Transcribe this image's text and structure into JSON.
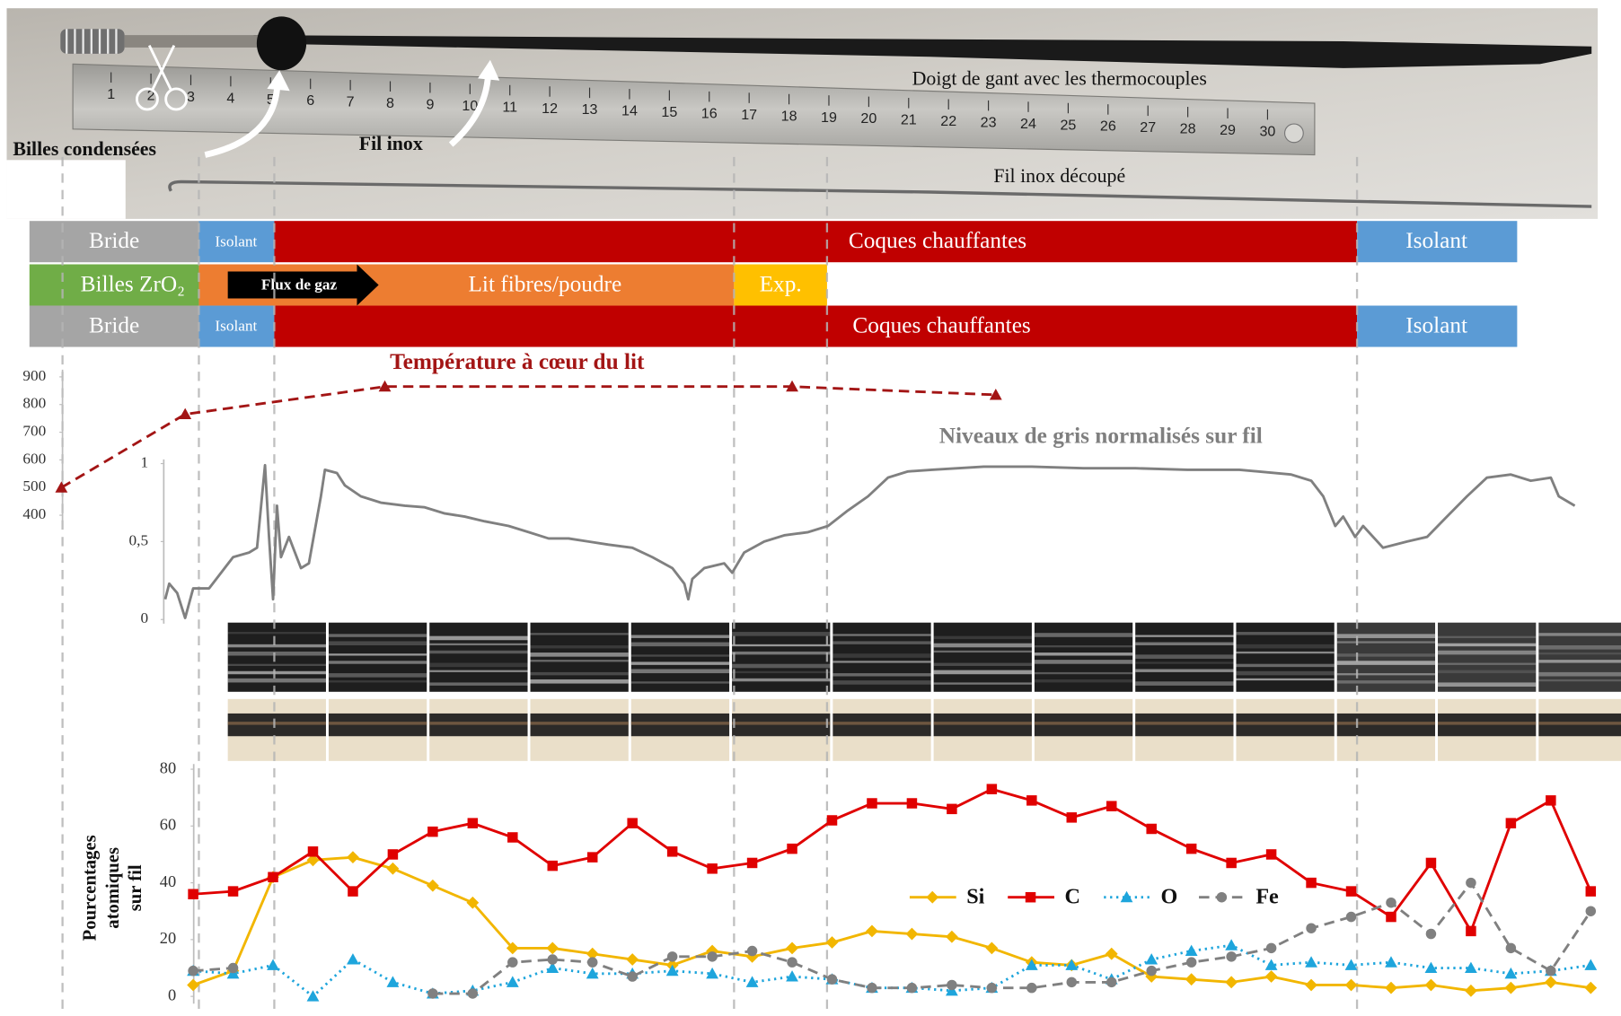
{
  "photo": {
    "labels": [
      "Billes condensées",
      "Fil inox",
      "Doigt de gant avec les thermocouples",
      "Fil inox découpé"
    ],
    "ruler_numbers": [
      1,
      2,
      3,
      4,
      5,
      6,
      7,
      8,
      9,
      10,
      11,
      12,
      13,
      14,
      15,
      16,
      17,
      18,
      19,
      20,
      21,
      22,
      23,
      24,
      25,
      26,
      27,
      28,
      29,
      30
    ]
  },
  "bands": [
    [
      {
        "label": "Bride",
        "color": "#a5a5a5"
      },
      {
        "label": "Isolant",
        "color": "#5b9bd5"
      },
      {
        "label": "Coques chauffantes",
        "color": "#c00000"
      },
      {
        "label": "Isolant",
        "color": "#5b9bd5"
      }
    ],
    [
      {
        "label": "Billes ZrO₂",
        "color": "#70ad47"
      },
      {
        "label": "Lit fibres/poudre",
        "color": "#ed7d31"
      },
      {
        "label": "Exp.",
        "color": "#ffc000"
      }
    ],
    [
      {
        "label": "Bride",
        "color": "#a5a5a5"
      },
      {
        "label": "Isolant",
        "color": "#5b9bd5"
      },
      {
        "label": "Coques chauffantes",
        "color": "#c00000"
      },
      {
        "label": "Isolant",
        "color": "#5b9bd5"
      }
    ]
  ],
  "flow_label": "Flux de gaz",
  "chart_data": [
    {
      "type": "line",
      "title": "Température à cœur du lit",
      "color": "#a31515",
      "marker": "triangle",
      "dash": "dashed",
      "x": [
        -0.2,
        2.9,
        7.9,
        18.1,
        23.2
      ],
      "values": [
        500,
        765,
        865,
        865,
        835
      ],
      "xlim": [
        -1,
        39
      ],
      "ylim": [
        400,
        900
      ],
      "yticks": [
        400,
        500,
        600,
        700,
        800,
        900
      ]
    },
    {
      "type": "line",
      "title": "Niveaux de gris normalisés sur fil",
      "color": "#808080",
      "marker": "none",
      "dash": "solid",
      "x": [
        2.4,
        2.5,
        2.7,
        2.9,
        3.1,
        3.5,
        3.8,
        4.1,
        4.5,
        4.7,
        4.9,
        5.0,
        5.1,
        5.2,
        5.3,
        5.5,
        5.8,
        6.0,
        6.3,
        6.4,
        6.7,
        6.9,
        7.3,
        7.8,
        8.4,
        8.9,
        9.4,
        9.9,
        10.4,
        11.0,
        11.5,
        12.0,
        12.5,
        13.0,
        13.5,
        14.1,
        14.6,
        15.1,
        15.4,
        15.5,
        15.6,
        15.9,
        16.4,
        16.6,
        16.9,
        17.4,
        17.9,
        18.5,
        19.0,
        19.5,
        20.0,
        20.5,
        21.0,
        21.6,
        22.9,
        24.1,
        25.4,
        26.7,
        28.0,
        29.3,
        30.6,
        31.1,
        31.4,
        31.7,
        31.9,
        32.2,
        32.4,
        32.9,
        33.5,
        34.0,
        34.5,
        35.0,
        35.5,
        36.1,
        36.6,
        37.1,
        37.3,
        37.7
      ],
      "values": [
        0.13,
        0.23,
        0.17,
        0.01,
        0.2,
        0.2,
        0.3,
        0.4,
        0.43,
        0.46,
        0.99,
        0.53,
        0.13,
        0.73,
        0.4,
        0.53,
        0.33,
        0.36,
        0.79,
        0.96,
        0.94,
        0.86,
        0.79,
        0.75,
        0.73,
        0.72,
        0.68,
        0.66,
        0.63,
        0.6,
        0.56,
        0.52,
        0.52,
        0.5,
        0.48,
        0.46,
        0.4,
        0.33,
        0.23,
        0.13,
        0.26,
        0.33,
        0.36,
        0.3,
        0.43,
        0.5,
        0.54,
        0.56,
        0.6,
        0.7,
        0.79,
        0.91,
        0.95,
        0.96,
        0.98,
        0.98,
        0.97,
        0.97,
        0.96,
        0.96,
        0.93,
        0.89,
        0.79,
        0.6,
        0.66,
        0.53,
        0.6,
        0.46,
        0.5,
        0.53,
        0.66,
        0.79,
        0.91,
        0.93,
        0.89,
        0.91,
        0.79,
        0.73
      ],
      "xlim": [
        -1,
        39
      ],
      "ylim": [
        0,
        1
      ],
      "yticks": [
        0,
        {
          "value": 0.5,
          "label": "0,5"
        },
        1
      ]
    },
    {
      "type": "line",
      "y_label": [
        "Pourcentages",
        "atomiques",
        "sur fil"
      ],
      "x": [
        3.1,
        4.1,
        5.1,
        6.1,
        7.1,
        8.1,
        9.1,
        10.1,
        11.1,
        12.1,
        13.1,
        14.1,
        15.1,
        16.1,
        17.1,
        18.1,
        19.1,
        20.1,
        21.1,
        22.1,
        23.1,
        24.1,
        25.1,
        26.1,
        27.1,
        28.1,
        29.1,
        30.1,
        31.1,
        32.1,
        33.1,
        34.1,
        35.1,
        36.1,
        37.1,
        38.1
      ],
      "series": [
        {
          "name": "Si",
          "color": "#f2b600",
          "marker": "diamond",
          "dash": "solid",
          "values": [
            4,
            9,
            42,
            48,
            49,
            45,
            39,
            33,
            17,
            17,
            15,
            13,
            11,
            16,
            14,
            17,
            19,
            23,
            22,
            21,
            17,
            12,
            11,
            15,
            7,
            6,
            5,
            7,
            4,
            4,
            3,
            4,
            2,
            3,
            5,
            3
          ]
        },
        {
          "name": "C",
          "color": "#e00000",
          "marker": "square",
          "dash": "solid",
          "values": [
            36,
            37,
            42,
            51,
            37,
            50,
            58,
            61,
            56,
            46,
            49,
            61,
            51,
            45,
            47,
            52,
            62,
            68,
            68,
            66,
            73,
            69,
            63,
            67,
            59,
            52,
            47,
            50,
            40,
            37,
            28,
            47,
            23,
            61,
            69,
            37
          ]
        },
        {
          "name": "O",
          "color": "#1ea5dc",
          "marker": "triangle",
          "dash": "dotted",
          "values": [
            9,
            8,
            11,
            0,
            13,
            5,
            1,
            2,
            5,
            10,
            8,
            8,
            9,
            8,
            5,
            7,
            6,
            3,
            3,
            2,
            3,
            11,
            11,
            6,
            13,
            16,
            18,
            11,
            12,
            11,
            12,
            10,
            10,
            8,
            9,
            11
          ]
        },
        {
          "name": "Fe",
          "color": "#808080",
          "marker": "circle",
          "dash": "dashed",
          "values": [
            9,
            10,
            null,
            null,
            null,
            null,
            1,
            1,
            12,
            13,
            12,
            7,
            14,
            14,
            16,
            12,
            6,
            3,
            3,
            4,
            3,
            3,
            5,
            5,
            9,
            12,
            14,
            17,
            24,
            28,
            33,
            22,
            40,
            17,
            9,
            30
          ]
        }
      ],
      "xlim": [
        -1,
        39
      ],
      "ylim": [
        0,
        80
      ],
      "yticks": [
        0,
        20,
        40,
        60,
        80
      ]
    }
  ]
}
